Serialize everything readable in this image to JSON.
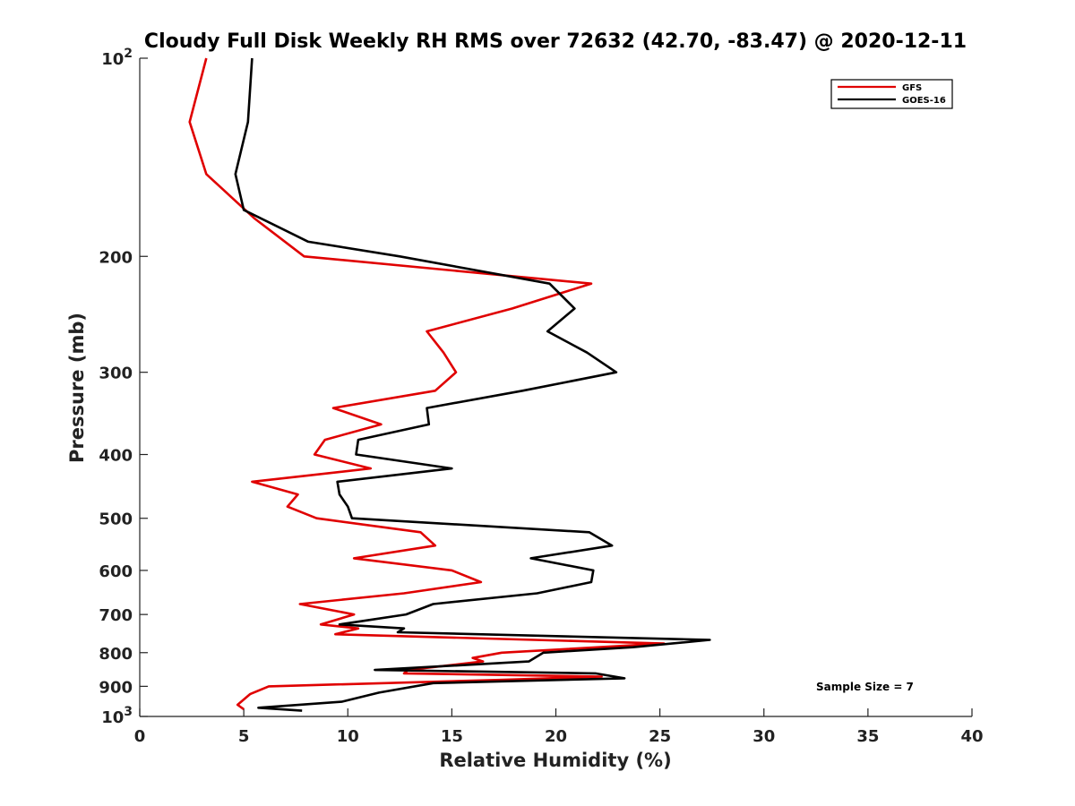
{
  "chart_data": {
    "type": "line",
    "title": "Cloudy Full Disk Weekly RH RMS over 72632 (42.70, -83.47) @ 2020-12-11",
    "xlabel": "Relative Humidity (%)",
    "ylabel": "Pressure (mb)",
    "xlim": [
      0,
      40
    ],
    "ylim": [
      1000,
      100
    ],
    "yscale": "log",
    "y_reversed": true,
    "x_ticks": [
      "0",
      "5",
      "10",
      "15",
      "20",
      "25",
      "30",
      "35",
      "40"
    ],
    "y_ticks": [
      {
        "value": 100,
        "base": "10",
        "exp": "2"
      },
      {
        "value": 200,
        "label": "200"
      },
      {
        "value": 300,
        "label": "300"
      },
      {
        "value": 400,
        "label": "400"
      },
      {
        "value": 500,
        "label": "500"
      },
      {
        "value": 600,
        "label": "600"
      },
      {
        "value": 700,
        "label": "700"
      },
      {
        "value": 800,
        "label": "800"
      },
      {
        "value": 900,
        "label": "900"
      },
      {
        "value": 1000,
        "base": "10",
        "exp": "3"
      }
    ],
    "grid": false,
    "legend_position": "top-right",
    "annotation": "Sample Size = 7",
    "series": [
      {
        "name": "GFS",
        "color": "#e00000",
        "points": [
          [
            3.2,
            100
          ],
          [
            2.4,
            125
          ],
          [
            3.2,
            150
          ],
          [
            5.5,
            175
          ],
          [
            7.9,
            200
          ],
          [
            21.7,
            220
          ],
          [
            17.9,
            240
          ],
          [
            13.8,
            260
          ],
          [
            14.6,
            280
          ],
          [
            15.2,
            300
          ],
          [
            14.2,
            320
          ],
          [
            9.3,
            340
          ],
          [
            11.6,
            360
          ],
          [
            8.9,
            380
          ],
          [
            8.4,
            400
          ],
          [
            11.1,
            420
          ],
          [
            5.4,
            440
          ],
          [
            7.6,
            460
          ],
          [
            7.1,
            480
          ],
          [
            8.5,
            500
          ],
          [
            13.5,
            525
          ],
          [
            14.2,
            550
          ],
          [
            10.3,
            575
          ],
          [
            15.0,
            600
          ],
          [
            16.4,
            625
          ],
          [
            12.7,
            650
          ],
          [
            7.7,
            675
          ],
          [
            10.3,
            700
          ],
          [
            8.7,
            725
          ],
          [
            10.5,
            735
          ],
          [
            9.4,
            750
          ],
          [
            25.2,
            775
          ],
          [
            17.4,
            800
          ],
          [
            16.0,
            815
          ],
          [
            16.5,
            825
          ],
          [
            12.9,
            850
          ],
          [
            12.7,
            860
          ],
          [
            22.2,
            870
          ],
          [
            17.3,
            880
          ],
          [
            6.2,
            900
          ],
          [
            5.3,
            925
          ],
          [
            4.7,
            960
          ],
          [
            5.0,
            975
          ]
        ]
      },
      {
        "name": "GOES-16",
        "color": "#000000",
        "points": [
          [
            5.4,
            100
          ],
          [
            5.2,
            125
          ],
          [
            4.6,
            150
          ],
          [
            5.0,
            170
          ],
          [
            8.1,
            190
          ],
          [
            12.5,
            200
          ],
          [
            19.7,
            220
          ],
          [
            20.9,
            240
          ],
          [
            19.6,
            260
          ],
          [
            21.5,
            280
          ],
          [
            22.9,
            300
          ],
          [
            18.4,
            320
          ],
          [
            13.8,
            340
          ],
          [
            13.9,
            360
          ],
          [
            10.5,
            380
          ],
          [
            10.4,
            400
          ],
          [
            15.0,
            420
          ],
          [
            9.5,
            440
          ],
          [
            9.6,
            460
          ],
          [
            10.0,
            480
          ],
          [
            10.2,
            500
          ],
          [
            21.6,
            525
          ],
          [
            22.7,
            550
          ],
          [
            18.8,
            575
          ],
          [
            21.8,
            600
          ],
          [
            21.7,
            625
          ],
          [
            19.1,
            650
          ],
          [
            14.1,
            675
          ],
          [
            12.8,
            700
          ],
          [
            9.6,
            725
          ],
          [
            12.7,
            735
          ],
          [
            12.4,
            745
          ],
          [
            27.4,
            765
          ],
          [
            23.7,
            785
          ],
          [
            19.4,
            800
          ],
          [
            18.7,
            825
          ],
          [
            11.3,
            850
          ],
          [
            21.9,
            860
          ],
          [
            23.3,
            875
          ],
          [
            14.1,
            890
          ],
          [
            11.5,
            920
          ],
          [
            9.7,
            950
          ],
          [
            5.7,
            970
          ],
          [
            7.8,
            980
          ]
        ]
      }
    ]
  }
}
